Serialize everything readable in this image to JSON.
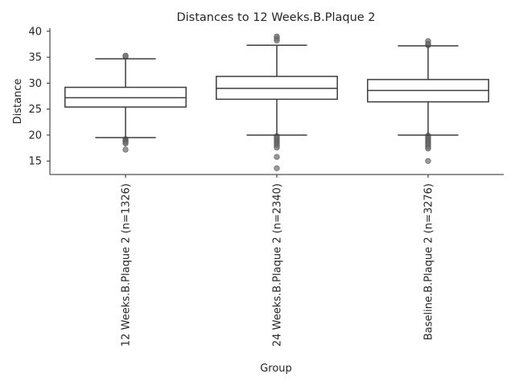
{
  "chart_data": {
    "type": "box",
    "title": "Distances to 12 Weeks.B.Plaque 2",
    "xlabel": "Group",
    "ylabel": "Distance",
    "ylim": [
      12.4,
      40.6
    ],
    "yticks": [
      15,
      20,
      25,
      30,
      35,
      40
    ],
    "grid": false,
    "box_color": "#ffffff",
    "line_color": "#3d3d3d",
    "outlier_color": "#6e6e6e",
    "groups": [
      {
        "label": "12 Weeks.B.Plaque 2 (n=1326)",
        "whisker_low": 19.5,
        "q1": 25.4,
        "median": 27.2,
        "q3": 29.2,
        "whisker_high": 34.7,
        "outliers": [
          35.1,
          35.3,
          19.2,
          19.0,
          18.8,
          18.6,
          18.4,
          17.2
        ]
      },
      {
        "label": "24 Weeks.B.Plaque 2 (n=2340)",
        "whisker_low": 20.0,
        "q1": 26.9,
        "median": 29.0,
        "q3": 31.3,
        "whisker_high": 37.3,
        "outliers": [
          39.0,
          38.6,
          38.2,
          19.8,
          19.5,
          19.2,
          18.9,
          18.6,
          18.3,
          18.0,
          17.6,
          15.8,
          13.6
        ]
      },
      {
        "label": "Baseline.B.Plaque 2 (n=3276)",
        "whisker_low": 20.0,
        "q1": 26.4,
        "median": 28.6,
        "q3": 30.7,
        "whisker_high": 37.2,
        "outliers": [
          38.1,
          37.6,
          37.3,
          19.9,
          19.6,
          19.3,
          19.0,
          18.7,
          18.4,
          18.1,
          17.7,
          17.4,
          15.0
        ]
      }
    ]
  }
}
